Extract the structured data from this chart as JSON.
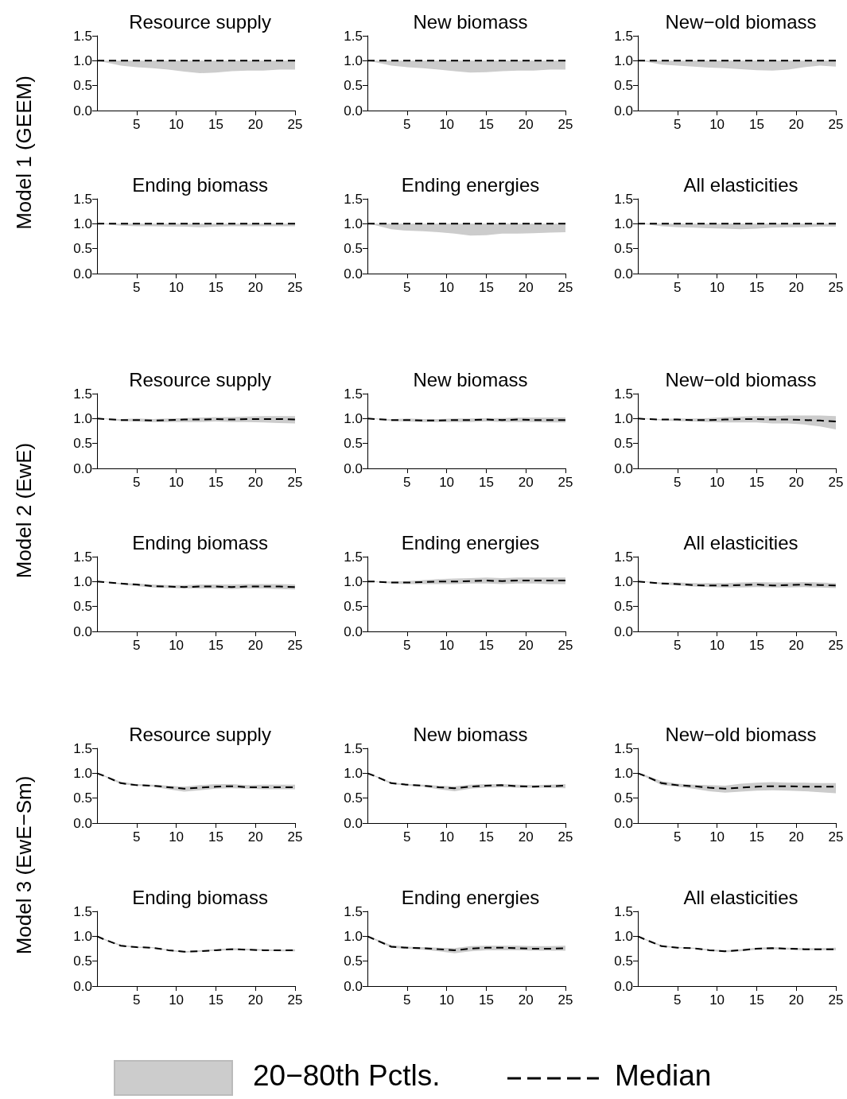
{
  "chart_data": [
    {
      "type": "line",
      "title": "Resource supply",
      "ylabel": "Model 1 (GEEM)",
      "x": [
        0,
        1,
        3,
        5,
        7,
        9,
        11,
        13,
        15,
        17,
        19,
        21,
        23,
        25
      ],
      "xlim": [
        0,
        25
      ],
      "xticks": [
        5,
        10,
        15,
        20,
        25
      ],
      "ylim": [
        0,
        1.5
      ],
      "yticks": [
        {
          "value": 0,
          "label": "0.0"
        },
        {
          "value": 0.5,
          "label": "0.5"
        },
        {
          "value": 1,
          "label": "1.0"
        },
        {
          "value": 1.5,
          "label": "1.5"
        }
      ],
      "marker": "none",
      "series": [
        {
          "color": "#000000",
          "line_style": "dashed",
          "values": [
            1,
            1,
            1,
            1,
            1,
            1,
            1,
            1,
            1,
            1,
            1,
            1,
            1,
            1
          ],
          "lower": [
            1,
            0.97,
            0.9,
            0.87,
            0.85,
            0.82,
            0.78,
            0.75,
            0.76,
            0.79,
            0.8,
            0.8,
            0.82,
            0.82
          ],
          "upper": [
            1,
            1,
            1,
            1,
            1,
            1,
            1,
            1,
            1,
            1,
            1,
            1,
            1,
            1
          ]
        }
      ]
    },
    {
      "type": "line",
      "title": "New biomass",
      "x": [
        0,
        1,
        3,
        5,
        7,
        9,
        11,
        13,
        15,
        17,
        19,
        21,
        23,
        25
      ],
      "xlim": [
        0,
        25
      ],
      "xticks": [
        5,
        10,
        15,
        20,
        25
      ],
      "ylim": [
        0,
        1.5
      ],
      "yticks": [
        {
          "value": 0,
          "label": "0.0"
        },
        {
          "value": 0.5,
          "label": "0.5"
        },
        {
          "value": 1,
          "label": "1.0"
        },
        {
          "value": 1.5,
          "label": "1.5"
        }
      ],
      "marker": "none",
      "series": [
        {
          "color": "#000000",
          "line_style": "dashed",
          "values": [
            1,
            1,
            1,
            1,
            1,
            1,
            1,
            1,
            1,
            1,
            1,
            1,
            1,
            1
          ],
          "lower": [
            1,
            0.97,
            0.9,
            0.87,
            0.85,
            0.82,
            0.79,
            0.76,
            0.77,
            0.79,
            0.8,
            0.8,
            0.82,
            0.82
          ],
          "upper": [
            1,
            1,
            1,
            1,
            1,
            1,
            1,
            1,
            1,
            1,
            1,
            1,
            1,
            1
          ]
        }
      ]
    },
    {
      "type": "line",
      "title": "New−old biomass",
      "x": [
        0,
        1,
        3,
        5,
        7,
        9,
        11,
        13,
        15,
        17,
        19,
        21,
        23,
        25
      ],
      "xlim": [
        0,
        25
      ],
      "xticks": [
        5,
        10,
        15,
        20,
        25
      ],
      "ylim": [
        0,
        1.5
      ],
      "yticks": [
        {
          "value": 0,
          "label": "0.0"
        },
        {
          "value": 0.5,
          "label": "0.5"
        },
        {
          "value": 1,
          "label": "1.0"
        },
        {
          "value": 1.5,
          "label": "1.5"
        }
      ],
      "marker": "none",
      "series": [
        {
          "color": "#000000",
          "line_style": "dashed",
          "values": [
            1,
            1,
            1,
            1,
            1,
            1,
            1,
            1,
            1,
            1,
            1,
            1,
            1,
            1
          ],
          "lower": [
            1,
            0.98,
            0.92,
            0.9,
            0.88,
            0.86,
            0.85,
            0.83,
            0.81,
            0.8,
            0.82,
            0.87,
            0.9,
            0.88
          ],
          "upper": [
            1,
            1,
            1,
            1,
            1,
            1,
            1,
            1,
            1,
            1,
            1,
            1,
            1,
            1
          ]
        }
      ]
    },
    {
      "type": "line",
      "title": "Ending biomass",
      "x": [
        0,
        1,
        3,
        5,
        7,
        9,
        11,
        13,
        15,
        17,
        19,
        21,
        23,
        25
      ],
      "xlim": [
        0,
        25
      ],
      "xticks": [
        5,
        10,
        15,
        20,
        25
      ],
      "ylim": [
        0,
        1.5
      ],
      "yticks": [
        {
          "value": 0,
          "label": "0.0"
        },
        {
          "value": 0.5,
          "label": "0.5"
        },
        {
          "value": 1,
          "label": "1.0"
        },
        {
          "value": 1.5,
          "label": "1.5"
        }
      ],
      "marker": "none",
      "series": [
        {
          "color": "#000000",
          "line_style": "dashed",
          "values": [
            1,
            1,
            1,
            1,
            1,
            1,
            1,
            1,
            1,
            1,
            1,
            1,
            1,
            1
          ],
          "lower": [
            1,
            0.99,
            0.96,
            0.95,
            0.95,
            0.94,
            0.94,
            0.93,
            0.94,
            0.95,
            0.95,
            0.95,
            0.95,
            0.95
          ],
          "upper": [
            1,
            1,
            1,
            1,
            1,
            1,
            1,
            1,
            1,
            1,
            1,
            1,
            1,
            1
          ]
        }
      ]
    },
    {
      "type": "line",
      "title": "Ending energies",
      "x": [
        0,
        1,
        3,
        5,
        7,
        9,
        11,
        13,
        15,
        17,
        19,
        21,
        23,
        25
      ],
      "xlim": [
        0,
        25
      ],
      "xticks": [
        5,
        10,
        15,
        20,
        25
      ],
      "ylim": [
        0,
        1.5
      ],
      "yticks": [
        {
          "value": 0,
          "label": "0.0"
        },
        {
          "value": 0.5,
          "label": "0.5"
        },
        {
          "value": 1,
          "label": "1.0"
        },
        {
          "value": 1.5,
          "label": "1.5"
        }
      ],
      "marker": "none",
      "series": [
        {
          "color": "#000000",
          "line_style": "dashed",
          "values": [
            1,
            1,
            1,
            1,
            1,
            1,
            1,
            1,
            1,
            1,
            1,
            1,
            1,
            1
          ],
          "lower": [
            1,
            0.97,
            0.89,
            0.86,
            0.85,
            0.83,
            0.8,
            0.76,
            0.77,
            0.8,
            0.8,
            0.81,
            0.82,
            0.83
          ],
          "upper": [
            1,
            1,
            1,
            1,
            1,
            1,
            1,
            1,
            1,
            1,
            1,
            1,
            1,
            1
          ]
        }
      ]
    },
    {
      "type": "line",
      "title": "All elasticities",
      "x": [
        0,
        1,
        3,
        5,
        7,
        9,
        11,
        13,
        15,
        17,
        19,
        21,
        23,
        25
      ],
      "xlim": [
        0,
        25
      ],
      "xticks": [
        5,
        10,
        15,
        20,
        25
      ],
      "ylim": [
        0,
        1.5
      ],
      "yticks": [
        {
          "value": 0,
          "label": "0.0"
        },
        {
          "value": 0.5,
          "label": "0.5"
        },
        {
          "value": 1,
          "label": "1.0"
        },
        {
          "value": 1.5,
          "label": "1.5"
        }
      ],
      "marker": "none",
      "series": [
        {
          "color": "#000000",
          "line_style": "dashed",
          "values": [
            1,
            1,
            1,
            1,
            1,
            1,
            1,
            1,
            1,
            1,
            1,
            1,
            1,
            1
          ],
          "lower": [
            1,
            0.99,
            0.95,
            0.93,
            0.92,
            0.91,
            0.9,
            0.89,
            0.9,
            0.92,
            0.93,
            0.93,
            0.94,
            0.94
          ],
          "upper": [
            1,
            1,
            1,
            1,
            1,
            1,
            1,
            1,
            1,
            1,
            1,
            1,
            1,
            1
          ]
        }
      ]
    },
    {
      "type": "line",
      "title": "Resource supply",
      "ylabel": "Model 2 (EwE)",
      "x": [
        0,
        1,
        3,
        5,
        7,
        9,
        11,
        13,
        15,
        17,
        19,
        21,
        23,
        25
      ],
      "xlim": [
        0,
        25
      ],
      "xticks": [
        5,
        10,
        15,
        20,
        25
      ],
      "ylim": [
        0,
        1.5
      ],
      "yticks": [
        {
          "value": 0,
          "label": "0.0"
        },
        {
          "value": 0.5,
          "label": "0.5"
        },
        {
          "value": 1,
          "label": "1.0"
        },
        {
          "value": 1.5,
          "label": "1.5"
        }
      ],
      "marker": "none",
      "series": [
        {
          "color": "#000000",
          "line_style": "dashed",
          "values": [
            1,
            0.99,
            0.97,
            0.97,
            0.96,
            0.97,
            0.98,
            0.98,
            0.99,
            0.98,
            0.99,
            0.99,
            0.99,
            0.98
          ],
          "lower": [
            1,
            0.99,
            0.95,
            0.94,
            0.93,
            0.93,
            0.93,
            0.93,
            0.94,
            0.93,
            0.93,
            0.92,
            0.91,
            0.9
          ],
          "upper": [
            1,
            1,
            0.99,
            1,
            0.99,
            1,
            1.01,
            1.02,
            1.03,
            1.03,
            1.04,
            1.05,
            1.05,
            1.05
          ]
        }
      ]
    },
    {
      "type": "line",
      "title": "New biomass",
      "x": [
        0,
        1,
        3,
        5,
        7,
        9,
        11,
        13,
        15,
        17,
        19,
        21,
        23,
        25
      ],
      "xlim": [
        0,
        25
      ],
      "xticks": [
        5,
        10,
        15,
        20,
        25
      ],
      "ylim": [
        0,
        1.5
      ],
      "yticks": [
        {
          "value": 0,
          "label": "0.0"
        },
        {
          "value": 0.5,
          "label": "0.5"
        },
        {
          "value": 1,
          "label": "1.0"
        },
        {
          "value": 1.5,
          "label": "1.5"
        }
      ],
      "marker": "none",
      "series": [
        {
          "color": "#000000",
          "line_style": "dashed",
          "values": [
            1,
            0.99,
            0.97,
            0.97,
            0.96,
            0.96,
            0.97,
            0.97,
            0.98,
            0.97,
            0.98,
            0.97,
            0.97,
            0.97
          ],
          "lower": [
            1,
            0.99,
            0.95,
            0.94,
            0.93,
            0.93,
            0.93,
            0.93,
            0.94,
            0.93,
            0.93,
            0.93,
            0.92,
            0.92
          ],
          "upper": [
            1,
            1,
            0.99,
            1,
            0.99,
            0.99,
            1,
            1,
            1.01,
            1.01,
            1.02,
            1.02,
            1.02,
            1.02
          ]
        }
      ]
    },
    {
      "type": "line",
      "title": "New−old biomass",
      "x": [
        0,
        1,
        3,
        5,
        7,
        9,
        11,
        13,
        15,
        17,
        19,
        21,
        23,
        25
      ],
      "xlim": [
        0,
        25
      ],
      "xticks": [
        5,
        10,
        15,
        20,
        25
      ],
      "ylim": [
        0,
        1.5
      ],
      "yticks": [
        {
          "value": 0,
          "label": "0.0"
        },
        {
          "value": 0.5,
          "label": "0.5"
        },
        {
          "value": 1,
          "label": "1.0"
        },
        {
          "value": 1.5,
          "label": "1.5"
        }
      ],
      "marker": "none",
      "series": [
        {
          "color": "#000000",
          "line_style": "dashed",
          "values": [
            1,
            0.99,
            0.98,
            0.98,
            0.97,
            0.97,
            0.98,
            0.99,
            0.99,
            0.98,
            0.98,
            0.97,
            0.96,
            0.94
          ],
          "lower": [
            1,
            0.99,
            0.96,
            0.95,
            0.94,
            0.93,
            0.92,
            0.92,
            0.92,
            0.9,
            0.9,
            0.88,
            0.84,
            0.78
          ],
          "upper": [
            1,
            1,
            0.99,
            1,
            1,
            1.01,
            1.03,
            1.04,
            1.05,
            1.05,
            1.06,
            1.06,
            1.06,
            1.05
          ]
        }
      ]
    },
    {
      "type": "line",
      "title": "Ending biomass",
      "x": [
        0,
        1,
        3,
        5,
        7,
        9,
        11,
        13,
        15,
        17,
        19,
        21,
        23,
        25
      ],
      "xlim": [
        0,
        25
      ],
      "xticks": [
        5,
        10,
        15,
        20,
        25
      ],
      "ylim": [
        0,
        1.5
      ],
      "yticks": [
        {
          "value": 0,
          "label": "0.0"
        },
        {
          "value": 0.5,
          "label": "0.5"
        },
        {
          "value": 1,
          "label": "1.0"
        },
        {
          "value": 1.5,
          "label": "1.5"
        }
      ],
      "marker": "none",
      "series": [
        {
          "color": "#000000",
          "line_style": "dashed",
          "values": [
            1,
            0.99,
            0.96,
            0.94,
            0.91,
            0.9,
            0.89,
            0.9,
            0.9,
            0.89,
            0.9,
            0.9,
            0.9,
            0.89
          ],
          "lower": [
            1,
            0.99,
            0.94,
            0.91,
            0.88,
            0.87,
            0.86,
            0.86,
            0.86,
            0.85,
            0.86,
            0.86,
            0.85,
            0.84
          ],
          "upper": [
            1,
            1,
            0.97,
            0.96,
            0.94,
            0.93,
            0.93,
            0.94,
            0.94,
            0.94,
            0.95,
            0.95,
            0.95,
            0.94
          ]
        }
      ]
    },
    {
      "type": "line",
      "title": "Ending energies",
      "x": [
        0,
        1,
        3,
        5,
        7,
        9,
        11,
        13,
        15,
        17,
        19,
        21,
        23,
        25
      ],
      "xlim": [
        0,
        25
      ],
      "xticks": [
        5,
        10,
        15,
        20,
        25
      ],
      "ylim": [
        0,
        1.5
      ],
      "yticks": [
        {
          "value": 0,
          "label": "0.0"
        },
        {
          "value": 0.5,
          "label": "0.5"
        },
        {
          "value": 1,
          "label": "1.0"
        },
        {
          "value": 1.5,
          "label": "1.5"
        }
      ],
      "marker": "none",
      "series": [
        {
          "color": "#000000",
          "line_style": "dashed",
          "values": [
            1,
            1,
            0.98,
            0.98,
            0.99,
            1,
            1,
            1.01,
            1.02,
            1.01,
            1.02,
            1.02,
            1.02,
            1.02
          ],
          "lower": [
            1,
            0.99,
            0.96,
            0.95,
            0.95,
            0.95,
            0.95,
            0.96,
            0.96,
            0.95,
            0.96,
            0.96,
            0.95,
            0.95
          ],
          "upper": [
            1,
            1,
            1,
            1.01,
            1.03,
            1.05,
            1.06,
            1.07,
            1.08,
            1.07,
            1.08,
            1.08,
            1.08,
            1.08
          ]
        }
      ]
    },
    {
      "type": "line",
      "title": "All elasticities",
      "x": [
        0,
        1,
        3,
        5,
        7,
        9,
        11,
        13,
        15,
        17,
        19,
        21,
        23,
        25
      ],
      "xlim": [
        0,
        25
      ],
      "xticks": [
        5,
        10,
        15,
        20,
        25
      ],
      "ylim": [
        0,
        1.5
      ],
      "yticks": [
        {
          "value": 0,
          "label": "0.0"
        },
        {
          "value": 0.5,
          "label": "0.5"
        },
        {
          "value": 1,
          "label": "1.0"
        },
        {
          "value": 1.5,
          "label": "1.5"
        }
      ],
      "marker": "none",
      "series": [
        {
          "color": "#000000",
          "line_style": "dashed",
          "values": [
            1,
            0.99,
            0.96,
            0.95,
            0.93,
            0.92,
            0.92,
            0.93,
            0.94,
            0.92,
            0.93,
            0.94,
            0.93,
            0.92
          ],
          "lower": [
            1,
            0.99,
            0.94,
            0.92,
            0.9,
            0.89,
            0.88,
            0.88,
            0.89,
            0.88,
            0.88,
            0.89,
            0.88,
            0.87
          ],
          "upper": [
            1,
            1,
            0.98,
            0.98,
            0.97,
            0.97,
            0.97,
            0.98,
            0.99,
            0.98,
            0.98,
            0.99,
            0.98,
            0.97
          ]
        }
      ]
    },
    {
      "type": "line",
      "title": "Resource supply",
      "ylabel": "Model 3 (EwE−Sm)",
      "x": [
        0,
        1,
        3,
        5,
        7,
        9,
        11,
        13,
        15,
        17,
        19,
        21,
        23,
        25
      ],
      "xlim": [
        0,
        25
      ],
      "xticks": [
        5,
        10,
        15,
        20,
        25
      ],
      "ylim": [
        0,
        1.5
      ],
      "yticks": [
        {
          "value": 0,
          "label": "0.0"
        },
        {
          "value": 0.5,
          "label": "0.5"
        },
        {
          "value": 1,
          "label": "1.0"
        },
        {
          "value": 1.5,
          "label": "1.5"
        }
      ],
      "marker": "none",
      "series": [
        {
          "color": "#000000",
          "line_style": "dashed",
          "values": [
            1,
            0.94,
            0.8,
            0.76,
            0.75,
            0.72,
            0.69,
            0.71,
            0.73,
            0.74,
            0.72,
            0.72,
            0.72,
            0.72
          ],
          "lower": [
            1,
            0.93,
            0.78,
            0.75,
            0.73,
            0.68,
            0.63,
            0.66,
            0.69,
            0.7,
            0.69,
            0.68,
            0.68,
            0.68
          ],
          "upper": [
            1,
            0.95,
            0.83,
            0.78,
            0.77,
            0.75,
            0.73,
            0.76,
            0.78,
            0.78,
            0.76,
            0.77,
            0.77,
            0.77
          ]
        }
      ]
    },
    {
      "type": "line",
      "title": "New biomass",
      "x": [
        0,
        1,
        3,
        5,
        7,
        9,
        11,
        13,
        15,
        17,
        19,
        21,
        23,
        25
      ],
      "xlim": [
        0,
        25
      ],
      "xticks": [
        5,
        10,
        15,
        20,
        25
      ],
      "ylim": [
        0,
        1.5
      ],
      "yticks": [
        {
          "value": 0,
          "label": "0.0"
        },
        {
          "value": 0.5,
          "label": "0.5"
        },
        {
          "value": 1,
          "label": "1.0"
        },
        {
          "value": 1.5,
          "label": "1.5"
        }
      ],
      "marker": "none",
      "series": [
        {
          "color": "#000000",
          "line_style": "dashed",
          "values": [
            1,
            0.94,
            0.8,
            0.77,
            0.75,
            0.72,
            0.7,
            0.73,
            0.75,
            0.76,
            0.74,
            0.73,
            0.74,
            0.75
          ],
          "lower": [
            1,
            0.93,
            0.78,
            0.75,
            0.73,
            0.68,
            0.64,
            0.69,
            0.71,
            0.72,
            0.71,
            0.71,
            0.71,
            0.7
          ],
          "upper": [
            1,
            0.95,
            0.82,
            0.78,
            0.77,
            0.75,
            0.74,
            0.77,
            0.78,
            0.78,
            0.77,
            0.76,
            0.77,
            0.78
          ]
        }
      ]
    },
    {
      "type": "line",
      "title": "New−old biomass",
      "x": [
        0,
        1,
        3,
        5,
        7,
        9,
        11,
        13,
        15,
        17,
        19,
        21,
        23,
        25
      ],
      "xlim": [
        0,
        25
      ],
      "xticks": [
        5,
        10,
        15,
        20,
        25
      ],
      "ylim": [
        0,
        1.5
      ],
      "yticks": [
        {
          "value": 0,
          "label": "0.0"
        },
        {
          "value": 0.5,
          "label": "0.5"
        },
        {
          "value": 1,
          "label": "1.0"
        },
        {
          "value": 1.5,
          "label": "1.5"
        }
      ],
      "marker": "none",
      "series": [
        {
          "color": "#000000",
          "line_style": "dashed",
          "values": [
            1,
            0.94,
            0.8,
            0.76,
            0.74,
            0.71,
            0.69,
            0.71,
            0.73,
            0.74,
            0.74,
            0.73,
            0.73,
            0.73
          ],
          "lower": [
            1,
            0.92,
            0.76,
            0.73,
            0.69,
            0.64,
            0.61,
            0.63,
            0.65,
            0.66,
            0.65,
            0.64,
            0.62,
            0.6
          ],
          "upper": [
            1,
            0.96,
            0.84,
            0.79,
            0.77,
            0.76,
            0.75,
            0.79,
            0.81,
            0.82,
            0.81,
            0.81,
            0.8,
            0.8
          ]
        }
      ]
    },
    {
      "type": "line",
      "title": "Ending biomass",
      "x": [
        0,
        1,
        3,
        5,
        7,
        9,
        11,
        13,
        15,
        17,
        19,
        21,
        23,
        25
      ],
      "xlim": [
        0,
        25
      ],
      "xticks": [
        5,
        10,
        15,
        20,
        25
      ],
      "ylim": [
        0,
        1.5
      ],
      "yticks": [
        {
          "value": 0,
          "label": "0.0"
        },
        {
          "value": 0.5,
          "label": "0.5"
        },
        {
          "value": 1,
          "label": "1.0"
        },
        {
          "value": 1.5,
          "label": "1.5"
        }
      ],
      "marker": "none",
      "series": [
        {
          "color": "#000000",
          "line_style": "dashed",
          "values": [
            1,
            0.93,
            0.81,
            0.78,
            0.77,
            0.72,
            0.69,
            0.7,
            0.72,
            0.74,
            0.73,
            0.72,
            0.72,
            0.72
          ],
          "lower": [
            1,
            0.92,
            0.8,
            0.77,
            0.76,
            0.71,
            0.67,
            0.69,
            0.71,
            0.72,
            0.72,
            0.71,
            0.7,
            0.7
          ],
          "upper": [
            1,
            0.94,
            0.83,
            0.79,
            0.78,
            0.73,
            0.7,
            0.72,
            0.74,
            0.76,
            0.75,
            0.74,
            0.73,
            0.74
          ]
        }
      ]
    },
    {
      "type": "line",
      "title": "Ending energies",
      "x": [
        0,
        1,
        3,
        5,
        7,
        9,
        11,
        13,
        15,
        17,
        19,
        21,
        23,
        25
      ],
      "xlim": [
        0,
        25
      ],
      "xticks": [
        5,
        10,
        15,
        20,
        25
      ],
      "ylim": [
        0,
        1.5
      ],
      "yticks": [
        {
          "value": 0,
          "label": "0.0"
        },
        {
          "value": 0.5,
          "label": "0.5"
        },
        {
          "value": 1,
          "label": "1.0"
        },
        {
          "value": 1.5,
          "label": "1.5"
        }
      ],
      "marker": "none",
      "series": [
        {
          "color": "#000000",
          "line_style": "dashed",
          "values": [
            1,
            0.93,
            0.79,
            0.77,
            0.76,
            0.74,
            0.72,
            0.75,
            0.77,
            0.77,
            0.76,
            0.75,
            0.75,
            0.76
          ],
          "lower": [
            1,
            0.92,
            0.77,
            0.75,
            0.73,
            0.7,
            0.66,
            0.7,
            0.72,
            0.72,
            0.72,
            0.71,
            0.71,
            0.71
          ],
          "upper": [
            1,
            0.95,
            0.82,
            0.79,
            0.78,
            0.77,
            0.76,
            0.8,
            0.81,
            0.81,
            0.81,
            0.8,
            0.8,
            0.81
          ]
        }
      ]
    },
    {
      "type": "line",
      "title": "All elasticities",
      "x": [
        0,
        1,
        3,
        5,
        7,
        9,
        11,
        13,
        15,
        17,
        19,
        21,
        23,
        25
      ],
      "xlim": [
        0,
        25
      ],
      "xticks": [
        5,
        10,
        15,
        20,
        25
      ],
      "ylim": [
        0,
        1.5
      ],
      "yticks": [
        {
          "value": 0,
          "label": "0.0"
        },
        {
          "value": 0.5,
          "label": "0.5"
        },
        {
          "value": 1,
          "label": "1.0"
        },
        {
          "value": 1.5,
          "label": "1.5"
        }
      ],
      "marker": "none",
      "legend": "bottom",
      "annotations": [
        "20−80th Pctls."
      ],
      "series": [
        {
          "name": "Median",
          "color": "#000000",
          "line_style": "dashed",
          "values": [
            1,
            0.93,
            0.8,
            0.77,
            0.76,
            0.72,
            0.7,
            0.72,
            0.75,
            0.76,
            0.75,
            0.74,
            0.74,
            0.74
          ],
          "lower": [
            1,
            0.92,
            0.79,
            0.76,
            0.75,
            0.71,
            0.68,
            0.7,
            0.73,
            0.74,
            0.73,
            0.72,
            0.72,
            0.72
          ],
          "upper": [
            1,
            0.94,
            0.82,
            0.78,
            0.77,
            0.74,
            0.72,
            0.74,
            0.77,
            0.78,
            0.77,
            0.76,
            0.76,
            0.77
          ]
        }
      ]
    }
  ]
}
